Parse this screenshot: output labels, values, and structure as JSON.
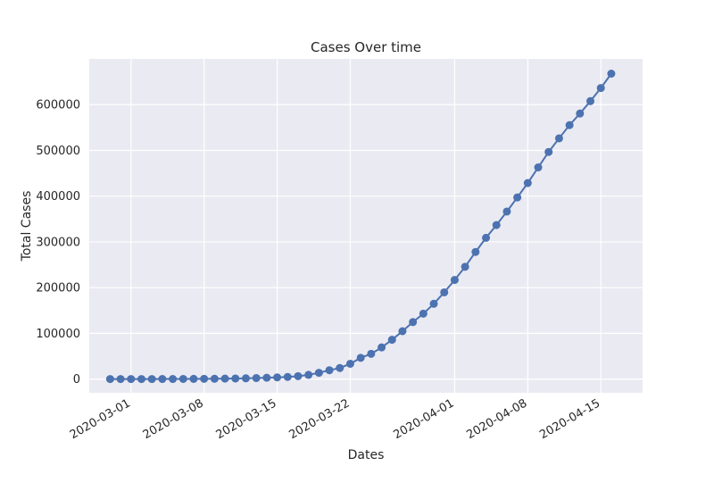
{
  "chart_data": {
    "type": "line",
    "title": "Cases Over time",
    "xlabel": "Dates",
    "ylabel": "Total Cases",
    "grid": true,
    "marker": "circle",
    "colors": {
      "background": "#eaeaf2",
      "grid": "#ffffff",
      "series": "#4c72b0"
    },
    "x_ticks": [
      "2020-03-01",
      "2020-03-08",
      "2020-03-15",
      "2020-03-22",
      "2020-04-01",
      "2020-04-08",
      "2020-04-15"
    ],
    "y_ticks": [
      "0",
      "100000",
      "200000",
      "300000",
      "400000",
      "500000",
      "600000"
    ],
    "xlim": [
      "2020-02-26",
      "2020-04-19"
    ],
    "ylim": [
      -30000,
      700000
    ],
    "series": [
      {
        "x": [
          "2020-02-28",
          "2020-02-29",
          "2020-03-01",
          "2020-03-02",
          "2020-03-03",
          "2020-03-04",
          "2020-03-05",
          "2020-03-06",
          "2020-03-07",
          "2020-03-08",
          "2020-03-09",
          "2020-03-10",
          "2020-03-11",
          "2020-03-12",
          "2020-03-13",
          "2020-03-14",
          "2020-03-15",
          "2020-03-16",
          "2020-03-17",
          "2020-03-18",
          "2020-03-19",
          "2020-03-20",
          "2020-03-21",
          "2020-03-22",
          "2020-03-23",
          "2020-03-24",
          "2020-03-25",
          "2020-03-26",
          "2020-03-27",
          "2020-03-28",
          "2020-03-29",
          "2020-03-30",
          "2020-03-31",
          "2020-04-01",
          "2020-04-02",
          "2020-04-03",
          "2020-04-04",
          "2020-04-05",
          "2020-04-06",
          "2020-04-07",
          "2020-04-08",
          "2020-04-09",
          "2020-04-10",
          "2020-04-11",
          "2020-04-12",
          "2020-04-13",
          "2020-04-14",
          "2020-04-15",
          "2020-04-16"
        ],
        "values": [
          60,
          68,
          75,
          100,
          124,
          158,
          221,
          319,
          435,
          541,
          704,
          994,
          1301,
          1697,
          2247,
          2943,
          3680,
          4663,
          6411,
          9259,
          13789,
          19383,
          24207,
          33546,
          46450,
          55231,
          69194,
          85991,
          104686,
          124665,
          143025,
          164620,
          189618,
          216722,
          245540,
          277965,
          308850,
          336802,
          366317,
          397121,
          428654,
          462780,
          496535,
          526396,
          555313,
          580619,
          607670,
          636350,
          667801
        ]
      }
    ]
  }
}
